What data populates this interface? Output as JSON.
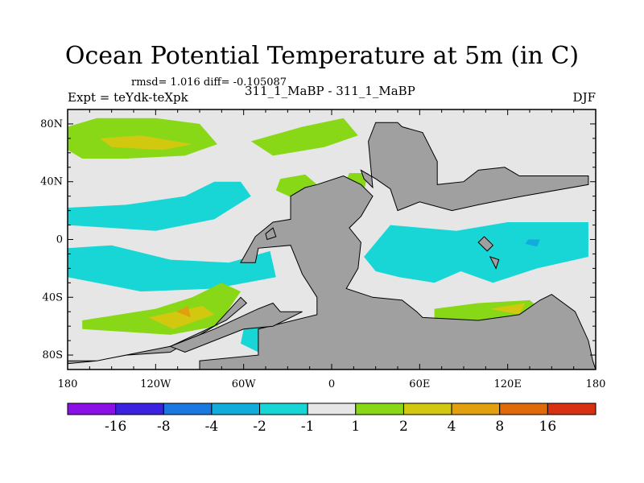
{
  "header": {
    "title": "Ocean Potential Temperature at 5m (in C)",
    "stats": "rmsd= 1.016 diff= -0.105087",
    "expt": "Expt = teYdk-teXpk",
    "experiment": "311_1_MaBP - 311_1_MaBP",
    "season": "DJF"
  },
  "chart_data": {
    "type": "contour-map",
    "title": "Ocean Potential Temperature at 5m (in C)",
    "xlim": [
      -180,
      180
    ],
    "ylim": [
      -90,
      90
    ],
    "x_ticks": [
      {
        "value": -180,
        "label": "180"
      },
      {
        "value": -120,
        "label": "120W"
      },
      {
        "value": -60,
        "label": "60W"
      },
      {
        "value": 0,
        "label": "0"
      },
      {
        "value": 60,
        "label": "60E"
      },
      {
        "value": 120,
        "label": "120E"
      },
      {
        "value": 180,
        "label": "180"
      }
    ],
    "y_ticks": [
      {
        "value": 80,
        "label": "80N"
      },
      {
        "value": 40,
        "label": "40N"
      },
      {
        "value": 0,
        "label": "0"
      },
      {
        "value": -40,
        "label": "40S"
      },
      {
        "value": -80,
        "label": "80S"
      }
    ],
    "colorbar": {
      "colors": [
        "#8b10e8",
        "#3a22e0",
        "#1a78e0",
        "#12acdc",
        "#18d6d6",
        "#e6e6e6",
        "#88d818",
        "#d2c810",
        "#e2a010",
        "#e06a0a",
        "#d83010"
      ],
      "labels": [
        "-16",
        "-8",
        "-4",
        "-2",
        "-1",
        "1",
        "2",
        "4",
        "8",
        "16"
      ]
    },
    "land_color": "#a0a0a0",
    "background_color": "#e6e6e6",
    "regions": [
      {
        "name": "north-atlantic-warm-band",
        "level": "2 to 4",
        "points": [
          [
            -180,
            78
          ],
          [
            -160,
            84
          ],
          [
            -120,
            84
          ],
          [
            -90,
            80
          ],
          [
            -78,
            66
          ],
          [
            -100,
            58
          ],
          [
            -140,
            56
          ],
          [
            -170,
            56
          ],
          [
            -180,
            62
          ]
        ]
      },
      {
        "name": "north-atlantic-warm-core",
        "level": "4 to 8",
        "points": [
          [
            -158,
            70
          ],
          [
            -130,
            72
          ],
          [
            -95,
            66
          ],
          [
            -115,
            62
          ],
          [
            -150,
            64
          ]
        ]
      },
      {
        "name": "arctic-warm-patch",
        "level": "2 to 4",
        "points": [
          [
            -55,
            68
          ],
          [
            -20,
            78
          ],
          [
            8,
            84
          ],
          [
            18,
            72
          ],
          [
            -5,
            64
          ],
          [
            -40,
            58
          ]
        ]
      },
      {
        "name": "mid-latitude-warm-patch",
        "level": "2 to 4",
        "points": [
          [
            -35,
            42
          ],
          [
            -18,
            45
          ],
          [
            -10,
            38
          ],
          [
            -25,
            28
          ],
          [
            -38,
            34
          ]
        ]
      },
      {
        "name": "east-warm-patch",
        "level": "2 to 4",
        "points": [
          [
            12,
            46
          ],
          [
            25,
            46
          ],
          [
            22,
            34
          ],
          [
            8,
            36
          ]
        ]
      },
      {
        "name": "northern-cool-band",
        "level": "-2 to -1",
        "points": [
          [
            -180,
            22
          ],
          [
            -140,
            24
          ],
          [
            -100,
            30
          ],
          [
            -80,
            40
          ],
          [
            -62,
            40
          ],
          [
            -55,
            30
          ],
          [
            -80,
            14
          ],
          [
            -120,
            6
          ],
          [
            -180,
            10
          ]
        ]
      },
      {
        "name": "equatorial-cool-band",
        "level": "-2 to -1",
        "points": [
          [
            -180,
            -6
          ],
          [
            -150,
            -4
          ],
          [
            -110,
            -14
          ],
          [
            -70,
            -16
          ],
          [
            -42,
            -8
          ],
          [
            -38,
            -26
          ],
          [
            -80,
            -34
          ],
          [
            -130,
            -36
          ],
          [
            -180,
            -26
          ]
        ]
      },
      {
        "name": "tropical-cool-basin",
        "level": "-2 to -1",
        "points": [
          [
            40,
            10
          ],
          [
            85,
            6
          ],
          [
            120,
            12
          ],
          [
            175,
            12
          ],
          [
            175,
            -12
          ],
          [
            140,
            -20
          ],
          [
            110,
            -30
          ],
          [
            88,
            -22
          ],
          [
            70,
            -30
          ],
          [
            46,
            -26
          ],
          [
            30,
            -22
          ],
          [
            22,
            -12
          ]
        ]
      },
      {
        "name": "cool-core",
        "level": "-4 to -2",
        "points": [
          [
            134,
            0
          ],
          [
            142,
            0
          ],
          [
            140,
            -5
          ],
          [
            132,
            -3
          ]
        ]
      },
      {
        "name": "southern-cool-patch",
        "level": "-2 to -1",
        "points": [
          [
            -60,
            -62
          ],
          [
            -45,
            -60
          ],
          [
            -40,
            -70
          ],
          [
            -50,
            -78
          ],
          [
            -62,
            -72
          ]
        ]
      },
      {
        "name": "south-atlantic-warm-band",
        "level": "2 to 4",
        "points": [
          [
            -170,
            -56
          ],
          [
            -120,
            -48
          ],
          [
            -95,
            -40
          ],
          [
            -75,
            -30
          ],
          [
            -62,
            -36
          ],
          [
            -78,
            -60
          ],
          [
            -110,
            -66
          ],
          [
            -170,
            -62
          ]
        ]
      },
      {
        "name": "south-atlantic-warm-core",
        "level": "4 to 8",
        "points": [
          [
            -125,
            -54
          ],
          [
            -88,
            -46
          ],
          [
            -80,
            -52
          ],
          [
            -108,
            -62
          ]
        ]
      },
      {
        "name": "south-atlantic-hot-spot",
        "level": "8 to 16",
        "points": [
          [
            -106,
            -50
          ],
          [
            -98,
            -46
          ],
          [
            -96,
            -54
          ]
        ]
      },
      {
        "name": "southern-warm-band-east",
        "level": "2 to 4",
        "points": [
          [
            70,
            -48
          ],
          [
            100,
            -44
          ],
          [
            135,
            -42
          ],
          [
            145,
            -50
          ],
          [
            120,
            -58
          ],
          [
            85,
            -58
          ],
          [
            70,
            -54
          ]
        ]
      },
      {
        "name": "southern-warm-core-east",
        "level": "4 to 8",
        "points": [
          [
            108,
            -48
          ],
          [
            132,
            -44
          ],
          [
            128,
            -52
          ]
        ]
      }
    ],
    "land": [
      {
        "name": "northern-continent",
        "points": [
          [
            25,
            68
          ],
          [
            30,
            81
          ],
          [
            45,
            81
          ],
          [
            48,
            78
          ],
          [
            62,
            74
          ],
          [
            72,
            54
          ],
          [
            72,
            38
          ],
          [
            90,
            40
          ],
          [
            100,
            48
          ],
          [
            118,
            50
          ],
          [
            128,
            44
          ],
          [
            175,
            44
          ],
          [
            175,
            38
          ],
          [
            130,
            30
          ],
          [
            110,
            26
          ],
          [
            100,
            24
          ],
          [
            82,
            20
          ],
          [
            60,
            26
          ],
          [
            45,
            20
          ],
          [
            40,
            35
          ],
          [
            30,
            42
          ],
          [
            20,
            48
          ],
          [
            22,
            42
          ],
          [
            28,
            36
          ]
        ]
      },
      {
        "name": "western-landmass",
        "points": [
          [
            -28,
            30
          ],
          [
            -18,
            36
          ],
          [
            -10,
            38
          ],
          [
            8,
            44
          ],
          [
            20,
            38
          ],
          [
            28,
            30
          ],
          [
            20,
            16
          ],
          [
            12,
            8
          ],
          [
            20,
            -2
          ],
          [
            18,
            -20
          ],
          [
            10,
            -34
          ],
          [
            28,
            -40
          ],
          [
            48,
            -42
          ],
          [
            58,
            -50
          ],
          [
            62,
            -54
          ],
          [
            100,
            -56
          ],
          [
            128,
            -52
          ],
          [
            142,
            -42
          ],
          [
            150,
            -38
          ],
          [
            166,
            -50
          ],
          [
            175,
            -70
          ],
          [
            178,
            -84
          ],
          [
            180,
            -90
          ],
          [
            -90,
            -90
          ],
          [
            -90,
            -84
          ],
          [
            -50,
            -80
          ],
          [
            -50,
            -62
          ],
          [
            -10,
            -52
          ],
          [
            -10,
            -40
          ],
          [
            -20,
            -24
          ],
          [
            -28,
            -4
          ],
          [
            -50,
            -6
          ],
          [
            -52,
            -16
          ],
          [
            -62,
            -16
          ],
          [
            -52,
            2
          ],
          [
            -40,
            12
          ],
          [
            -28,
            14
          ]
        ]
      },
      {
        "name": "southern-arc",
        "points": [
          [
            -180,
            -84
          ],
          [
            -160,
            -84
          ],
          [
            -140,
            -80
          ],
          [
            -110,
            -78
          ],
          [
            -80,
            -60
          ],
          [
            -62,
            -40
          ],
          [
            -58,
            -44
          ],
          [
            -72,
            -56
          ],
          [
            -110,
            -74
          ],
          [
            -160,
            -84
          ],
          [
            -180,
            -86
          ]
        ]
      },
      {
        "name": "southern-ridge",
        "points": [
          [
            -50,
            -48
          ],
          [
            -40,
            -44
          ],
          [
            -35,
            -50
          ],
          [
            -20,
            -50
          ],
          [
            -40,
            -60
          ],
          [
            -60,
            -62
          ],
          [
            -80,
            -70
          ],
          [
            -100,
            -78
          ],
          [
            -110,
            -74
          ],
          [
            -80,
            -62
          ]
        ]
      },
      {
        "name": "island-a",
        "points": [
          [
            -45,
            4
          ],
          [
            -40,
            8
          ],
          [
            -38,
            2
          ],
          [
            -44,
            0
          ]
        ]
      },
      {
        "name": "island-b",
        "points": [
          [
            100,
            -2
          ],
          [
            104,
            2
          ],
          [
            110,
            -4
          ],
          [
            106,
            -8
          ]
        ]
      },
      {
        "name": "island-c",
        "points": [
          [
            108,
            -12
          ],
          [
            114,
            -14
          ],
          [
            112,
            -20
          ]
        ]
      }
    ]
  }
}
